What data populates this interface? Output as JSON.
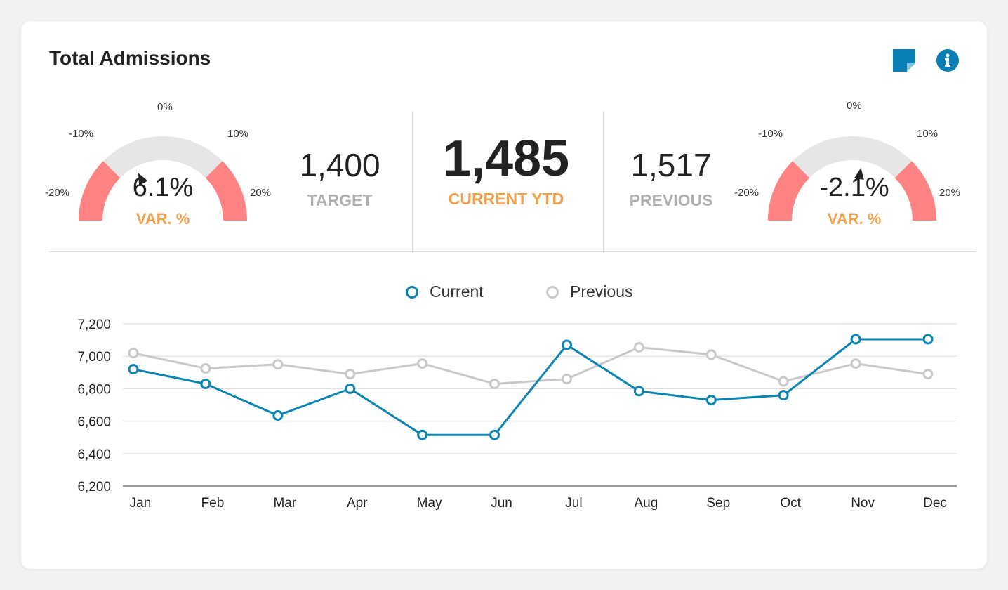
{
  "card": {
    "title": "Total Admissions"
  },
  "icons": {
    "note": "sticky-note-icon",
    "info": "info-circle-icon"
  },
  "gauge_left": {
    "ticks": [
      "-20%",
      "-10%",
      "0%",
      "10%",
      "20%"
    ],
    "value": "6.1%",
    "label": "VAR. %",
    "variance": 6.1
  },
  "gauge_right": {
    "ticks": [
      "-20%",
      "-10%",
      "0%",
      "10%",
      "20%"
    ],
    "value": "-2.1%",
    "label": "VAR. %",
    "variance": -2.1
  },
  "kpis": {
    "target": {
      "value": "1,400",
      "label": "TARGET"
    },
    "current": {
      "value": "1,485",
      "label": "CURRENT YTD"
    },
    "previous": {
      "value": "1,517",
      "label": "PREVIOUS"
    }
  },
  "colors": {
    "current": "#0a84b0",
    "previous": "#c9c9c9",
    "gauge_red": "#ff8383",
    "gauge_grey": "#e6e6e6",
    "accent_orange": "#f0a04b",
    "icon_blue": "#0a7fb5"
  },
  "chart_data": {
    "type": "line",
    "categories": [
      "Jan",
      "Feb",
      "Mar",
      "Apr",
      "May",
      "Jun",
      "Jul",
      "Aug",
      "Sep",
      "Oct",
      "Nov",
      "Dec"
    ],
    "series": [
      {
        "name": "Current",
        "values": [
          6920,
          6830,
          6635,
          6800,
          6515,
          6515,
          7070,
          6785,
          6730,
          6760,
          7105,
          7105
        ]
      },
      {
        "name": "Previous",
        "values": [
          7020,
          6925,
          6950,
          6890,
          6955,
          6830,
          6860,
          7055,
          7010,
          6845,
          6955,
          6890
        ]
      }
    ],
    "y_ticks": [
      "7,200",
      "7,000",
      "6,800",
      "6,600",
      "6,400",
      "6,200"
    ],
    "ylim": [
      6200,
      7200
    ],
    "title": "",
    "xlabel": "",
    "ylabel": "",
    "legend": "top-center",
    "grid": true
  }
}
